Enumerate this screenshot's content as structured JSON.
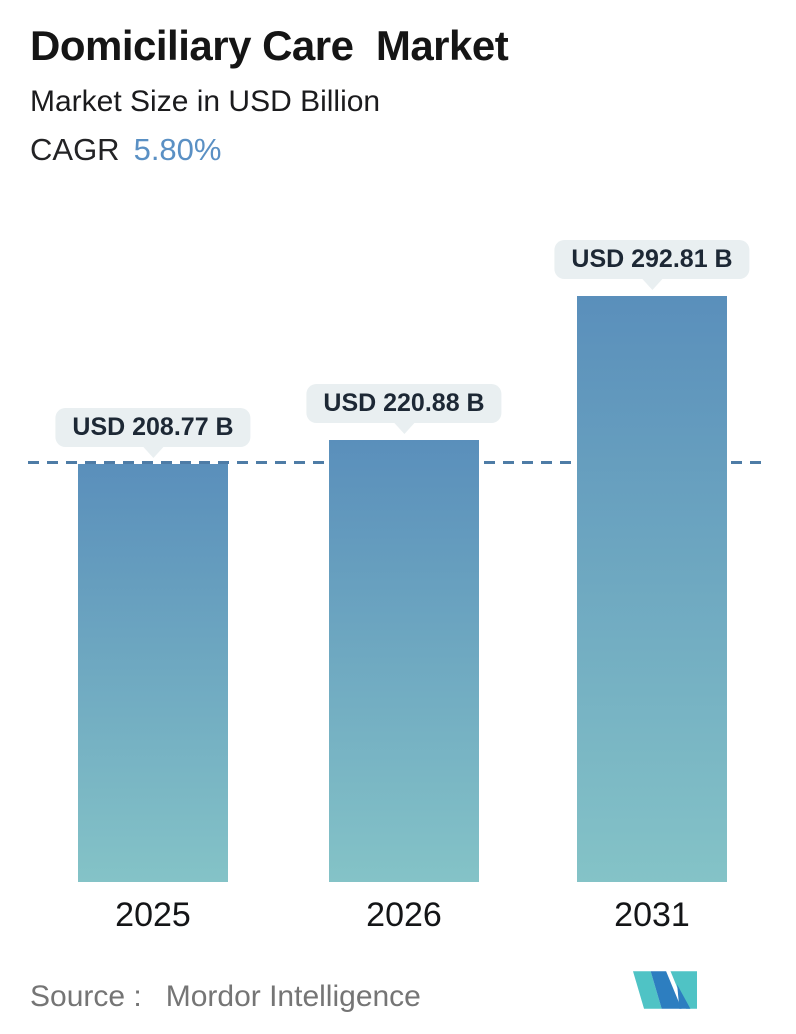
{
  "header": {
    "title": "Domiciliary Care  Market",
    "subtitle": "Market Size in USD Billion",
    "cagr_label": "CAGR",
    "cagr_value": "5.80%",
    "cagr_color": "#5a90c4"
  },
  "chart_data": {
    "type": "bar",
    "title": "Domiciliary Care Market",
    "subtitle": "Market Size in USD Billion",
    "categories": [
      "2025",
      "2026",
      "2031"
    ],
    "values": [
      208.77,
      220.88,
      292.81
    ],
    "value_labels": [
      "USD 208.77 B",
      "USD 220.88 B",
      "USD 292.81 B"
    ],
    "units": "USD Billion",
    "cagr_percent": 5.8,
    "ylim": [
      0,
      330
    ],
    "grid": false,
    "legend": false,
    "reference_line_value": 208.77,
    "reference_line_style": "dashed",
    "colors": {
      "bar_gradient_top": "#5a8fbb",
      "bar_gradient_bottom": "#84c3c7",
      "dashed_line": "#4e7ca6",
      "bubble_bg": "#e9eff1"
    }
  },
  "footer": {
    "source_label": "Source :",
    "source_name": "Mordor Intelligence",
    "logo": {
      "name": "mordor-intelligence-logo",
      "teal": "#4fc3c5",
      "blue": "#2d7ec0"
    }
  }
}
